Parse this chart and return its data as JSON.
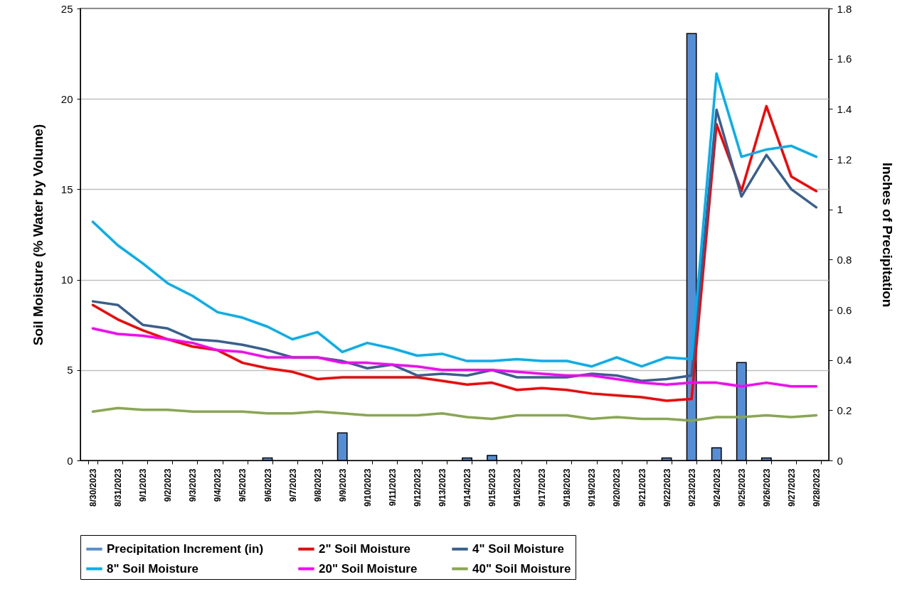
{
  "chart_data": {
    "type": "line",
    "ylabel": "Soil Moisture (% Water by Volume)",
    "y2label": "Inches of Precipitation",
    "categories": [
      "8/30/2023",
      "8/31/2023",
      "9/1/2023",
      "9/2/2023",
      "9/3/2023",
      "9/4/2023",
      "9/5/2023",
      "9/6/2023",
      "9/7/2023",
      "9/8/2023",
      "9/9/2023",
      "9/10/2023",
      "9/11/2023",
      "9/12/2023",
      "9/13/2023",
      "9/14/2023",
      "9/15/2023",
      "9/16/2023",
      "9/17/2023",
      "9/18/2023",
      "9/19/2023",
      "9/20/2023",
      "9/21/2023",
      "9/22/2023",
      "9/23/2023",
      "9/24/2023",
      "9/25/2023",
      "9/26/2023",
      "9/27/2023",
      "9/28/2023"
    ],
    "series": [
      {
        "name": "Precipitation Increment (in)",
        "type": "bar",
        "axis": "y2",
        "color": "#558ed5",
        "values": [
          null,
          null,
          null,
          null,
          null,
          null,
          null,
          0.01,
          null,
          null,
          0.11,
          null,
          null,
          null,
          null,
          0.01,
          0.02,
          null,
          null,
          null,
          null,
          null,
          null,
          0.01,
          1.7,
          0.05,
          0.39,
          0.01,
          null,
          null
        ]
      },
      {
        "name": "2\" Soil Moisture",
        "color": "#ff0000",
        "values": [
          8.6,
          7.8,
          7.2,
          6.7,
          6.3,
          6.1,
          5.4,
          5.1,
          4.9,
          4.5,
          4.6,
          4.6,
          4.6,
          4.6,
          4.4,
          4.2,
          4.3,
          3.9,
          4.0,
          3.9,
          3.7,
          3.6,
          3.5,
          3.3,
          3.4,
          18.6,
          14.9,
          19.6,
          15.7,
          14.9
        ]
      },
      {
        "name": "4\" Soil Moisture",
        "color": "#376092",
        "values": [
          8.8,
          8.6,
          7.5,
          7.3,
          6.7,
          6.6,
          6.4,
          6.1,
          5.7,
          5.7,
          5.5,
          5.1,
          5.3,
          4.7,
          4.8,
          4.7,
          5.0,
          4.6,
          4.6,
          4.6,
          4.8,
          4.7,
          4.4,
          4.5,
          4.7,
          19.4,
          14.6,
          16.9,
          15.0,
          14.0
        ]
      },
      {
        "name": "8\" Soil Moisture",
        "color": "#00b0f0",
        "values": [
          13.2,
          11.9,
          10.9,
          9.8,
          9.1,
          8.2,
          7.9,
          7.4,
          6.7,
          7.1,
          6.0,
          6.5,
          6.2,
          5.8,
          5.9,
          5.5,
          5.5,
          5.6,
          5.5,
          5.5,
          5.2,
          5.7,
          5.2,
          5.7,
          5.6,
          21.4,
          16.8,
          17.2,
          17.4,
          16.8
        ]
      },
      {
        "name": "20\" Soil Moisture",
        "color": "#ff00ff",
        "values": [
          7.3,
          7.0,
          6.9,
          6.7,
          6.5,
          6.1,
          6.0,
          5.7,
          5.7,
          5.7,
          5.4,
          5.4,
          5.3,
          5.2,
          5.0,
          5.0,
          5.0,
          4.9,
          4.8,
          4.7,
          4.7,
          4.5,
          4.3,
          4.2,
          4.3,
          4.3,
          4.1,
          4.3,
          4.1,
          4.1
        ]
      },
      {
        "name": "40\" Soil Moisture",
        "color": "#88a84e",
        "values": [
          2.7,
          2.9,
          2.8,
          2.8,
          2.7,
          2.7,
          2.7,
          2.6,
          2.6,
          2.7,
          2.6,
          2.5,
          2.5,
          2.5,
          2.6,
          2.4,
          2.3,
          2.5,
          2.5,
          2.5,
          2.3,
          2.4,
          2.3,
          2.3,
          2.2,
          2.4,
          2.4,
          2.5,
          2.4,
          2.5
        ]
      }
    ],
    "ylim": [
      0,
      25
    ],
    "yticks": [
      0,
      5,
      10,
      15,
      20,
      25
    ],
    "y2lim": [
      0,
      1.8
    ],
    "y2ticks": [
      0,
      0.2,
      0.4,
      0.6,
      0.8,
      1,
      1.2,
      1.4,
      1.6,
      1.8
    ],
    "grid": "y",
    "legend": "bottom"
  }
}
